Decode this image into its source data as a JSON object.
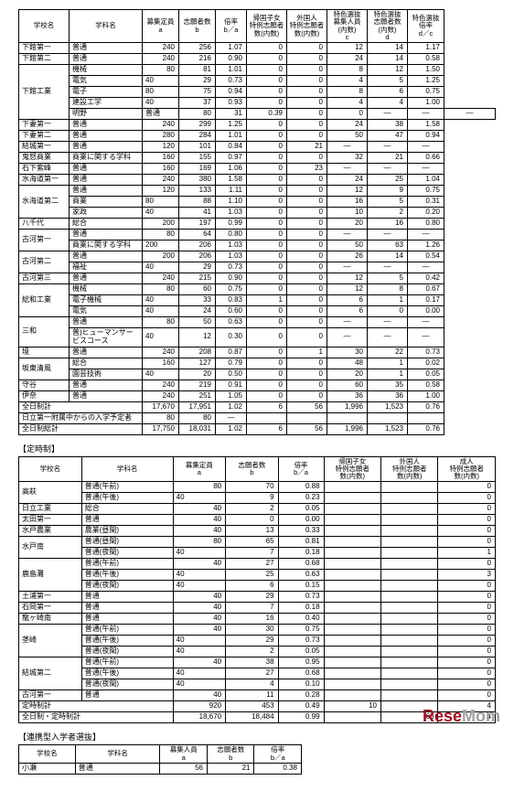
{
  "headers1": [
    "学校名",
    "学科名",
    "募集定員\na",
    "志願者数\nb",
    "倍率\nb／a",
    "帰国子女\n特例志願者\n数(内数)",
    "外国人\n特例志願者\n数(内数)",
    "特色選抜\n募集人員\n(内数)\nc",
    "特色選抜\n志願者数\n(内数)\nd",
    "特色選抜\n倍率\nd／c"
  ],
  "headers2": [
    "学校名",
    "学科名",
    "募集定員\na",
    "志願者数\nb",
    "倍率\nb／a",
    "帰国子女\n特例志願者\n数(内数)",
    "外国人\n特例志願者\n数(内数)",
    "成人\n特例志願者\n数(内数)"
  ],
  "headers3": [
    "学校名",
    "学科名",
    "募集人員\na",
    "志願者数\nb",
    "倍率\nb／a"
  ],
  "label2": "【定時制】",
  "label3": "【連携型入学者選抜】",
  "t1": [
    [
      "下館第一",
      "普通",
      "240",
      "256",
      "1.07",
      "0",
      "0",
      "12",
      "14",
      "1.17"
    ],
    [
      "下館第二",
      "普通",
      "240",
      "216",
      "0.90",
      "0",
      "0",
      "24",
      "14",
      "0.58"
    ],
    [
      {
        "r": 5,
        "v": "下館工業"
      },
      "機械",
      "80",
      "81",
      "1.01",
      "0",
      "0",
      "8",
      "12",
      "1.50"
    ],
    [
      "電気",
      "40",
      "29",
      "0.73",
      "0",
      "0",
      "4",
      "5",
      "1.25"
    ],
    [
      "電子",
      "80",
      "75",
      "0.94",
      "0",
      "0",
      "8",
      "6",
      "0.75"
    ],
    [
      "建設工学",
      "40",
      "37",
      "0.93",
      "0",
      "0",
      "4",
      "4",
      "1.00"
    ],
    [
      "明野",
      "普通",
      "80",
      "31",
      "0.39",
      "0",
      "0",
      "—",
      "—",
      "—"
    ],
    [
      "下妻第一",
      "普通",
      "240",
      "299",
      "1.25",
      "0",
      "0",
      "24",
      "38",
      "1.58"
    ],
    [
      "下妻第二",
      "普通",
      "280",
      "284",
      "1.01",
      "0",
      "0",
      "50",
      "47",
      "0.94"
    ],
    [
      "結城第一",
      "普通",
      "120",
      "101",
      "0.84",
      "0",
      "21",
      "—",
      "—",
      "—"
    ],
    [
      "鬼怒商業",
      "商業に関する学科",
      "160",
      "155",
      "0.97",
      "0",
      "0",
      "32",
      "21",
      "0.66"
    ],
    [
      "石下紫峰",
      "普通",
      "160",
      "169",
      "1.06",
      "0",
      "23",
      "—",
      "—",
      "—"
    ],
    [
      "水海道第一",
      "普通",
      "240",
      "380",
      "1.58",
      "0",
      "0",
      "24",
      "25",
      "1.04"
    ],
    [
      {
        "r": 3,
        "v": "水海道第二"
      },
      "普通",
      "120",
      "133",
      "1.11",
      "0",
      "0",
      "12",
      "9",
      "0.75"
    ],
    [
      "商業",
      "80",
      "88",
      "1.10",
      "0",
      "0",
      "16",
      "5",
      "0.31"
    ],
    [
      "家政",
      "40",
      "41",
      "1.03",
      "0",
      "0",
      "10",
      "2",
      "0.20"
    ],
    [
      "八千代",
      "総合",
      "200",
      "197",
      "0.99",
      "0",
      "0",
      "20",
      "16",
      "0.80"
    ],
    [
      {
        "r": 2,
        "v": "古河第一"
      },
      "普通",
      "80",
      "64",
      "0.80",
      "0",
      "0",
      "—",
      "—",
      "—"
    ],
    [
      "商業に関する学科",
      "200",
      "206",
      "1.03",
      "0",
      "0",
      "50",
      "63",
      "1.26"
    ],
    [
      {
        "r": 2,
        "v": "古河第二"
      },
      "普通",
      "200",
      "206",
      "1.03",
      "0",
      "0",
      "26",
      "14",
      "0.54"
    ],
    [
      "福祉",
      "40",
      "29",
      "0.73",
      "0",
      "0",
      "—",
      "—",
      "—"
    ],
    [
      "古河第三",
      "普通",
      "240",
      "215",
      "0.90",
      "0",
      "0",
      "12",
      "5",
      "0.42"
    ],
    [
      {
        "r": 3,
        "v": "総和工業"
      },
      "機械",
      "80",
      "60",
      "0.75",
      "0",
      "0",
      "12",
      "8",
      "0.67"
    ],
    [
      "電子機械",
      "40",
      "33",
      "0.83",
      "1",
      "0",
      "6",
      "1",
      "0.17"
    ],
    [
      "電気",
      "40",
      "24",
      "0.60",
      "0",
      "0",
      "6",
      "0",
      "0.00"
    ],
    [
      {
        "r": 2,
        "v": "三和"
      },
      "普通",
      "80",
      "50",
      "0.63",
      "0",
      "0",
      "—",
      "—",
      "—"
    ],
    [
      "普)ヒューマンサービスコース",
      "40",
      "12",
      "0.30",
      "0",
      "0",
      "—",
      "—",
      "—"
    ],
    [
      "境",
      "普通",
      "240",
      "208",
      "0.87",
      "0",
      "1",
      "30",
      "22",
      "0.73"
    ],
    [
      {
        "r": 2,
        "v": "坂東清風"
      },
      "総合",
      "160",
      "127",
      "0.79",
      "0",
      "0",
      "48",
      "1",
      "0.02"
    ],
    [
      "園芸技術",
      "40",
      "20",
      "0.50",
      "0",
      "0",
      "20",
      "1",
      "0.05"
    ],
    [
      "守谷",
      "普通",
      "240",
      "219",
      "0.91",
      "0",
      "0",
      "60",
      "35",
      "0.58"
    ],
    [
      "伊奈",
      "普通",
      "240",
      "251",
      "1.05",
      "0",
      "0",
      "36",
      "36",
      "1.00"
    ],
    [
      {
        "c": 2,
        "v": "全日制計"
      },
      "17,670",
      "17,951",
      "1.02",
      "6",
      "56",
      "1,996",
      "1,523",
      "0.76"
    ],
    [
      {
        "c": 2,
        "v": "日立第一附属中からの入学予定者"
      },
      "80",
      "80",
      "—",
      "",
      "",
      "",
      "",
      ""
    ],
    [
      {
        "c": 2,
        "v": "全日制総計"
      },
      "17,750",
      "18,031",
      "1.02",
      "6",
      "56",
      "1,996",
      "1,523",
      "0.76"
    ]
  ],
  "t2": [
    [
      {
        "r": 2,
        "v": "高萩"
      },
      "普通(午前)",
      "80",
      "70",
      "0.88",
      "",
      "",
      "0"
    ],
    [
      "普通(午後)",
      "40",
      "9",
      "0.23",
      "",
      "",
      "0"
    ],
    [
      "日立工業",
      "総合",
      "40",
      "2",
      "0.05",
      "",
      "",
      "0"
    ],
    [
      "太田第一",
      "普通",
      "40",
      "0",
      "0.00",
      "",
      "",
      "0"
    ],
    [
      "水戸農業",
      "農業(昼間)",
      "40",
      "13",
      "0.33",
      "",
      "",
      "0"
    ],
    [
      {
        "r": 2,
        "v": "水戸南"
      },
      "普通(昼間)",
      "80",
      "65",
      "0.81",
      "",
      "",
      "0"
    ],
    [
      "普通(夜間)",
      "40",
      "7",
      "0.18",
      "",
      "",
      "1"
    ],
    [
      {
        "r": 3,
        "v": "鹿島灘"
      },
      "普通(午前)",
      "40",
      "27",
      "0.68",
      "",
      "",
      "0"
    ],
    [
      "普通(午後)",
      "40",
      "25",
      "0.63",
      "",
      "",
      "3"
    ],
    [
      "普通(夜間)",
      "40",
      "6",
      "0.15",
      "",
      "",
      "0"
    ],
    [
      "土浦第一",
      "普通",
      "40",
      "29",
      "0.73",
      "",
      "",
      "0"
    ],
    [
      "石岡第一",
      "普通",
      "40",
      "7",
      "0.18",
      "",
      "",
      "0"
    ],
    [
      "龍ヶ崎南",
      "普通",
      "40",
      "16",
      "0.40",
      "",
      "",
      "0"
    ],
    [
      {
        "r": 3,
        "v": "茎崎"
      },
      "普通(午前)",
      "40",
      "30",
      "0.75",
      "",
      "",
      "0"
    ],
    [
      "普通(午後)",
      "40",
      "29",
      "0.73",
      "",
      "",
      "0"
    ],
    [
      "普通(夜間)",
      "40",
      "2",
      "0.05",
      "",
      "",
      "0"
    ],
    [
      {
        "r": 3,
        "v": "結城第二"
      },
      "普通(午前)",
      "40",
      "38",
      "0.95",
      "",
      "",
      "0"
    ],
    [
      "普通(午後)",
      "40",
      "27",
      "0.68",
      "",
      "",
      "0"
    ],
    [
      "普通(夜間)",
      "40",
      "4",
      "0.10",
      "",
      "",
      "0"
    ],
    [
      "古河第一",
      "普通",
      "40",
      "11",
      "0.28",
      "",
      "",
      "0"
    ],
    [
      {
        "c": 2,
        "v": "定時制計"
      },
      "920",
      "453",
      "0.49",
      "10",
      "",
      "4"
    ],
    [
      {
        "c": 2,
        "v": "全日制・定時制計"
      },
      "18,670",
      "18,484",
      "0.99",
      "",
      "66",
      "4"
    ]
  ],
  "t3": [
    [
      "小瀬",
      "普通",
      "56",
      "21",
      "0.38"
    ]
  ],
  "logo": {
    "p1": "Rese",
    "p2": "Mom"
  }
}
